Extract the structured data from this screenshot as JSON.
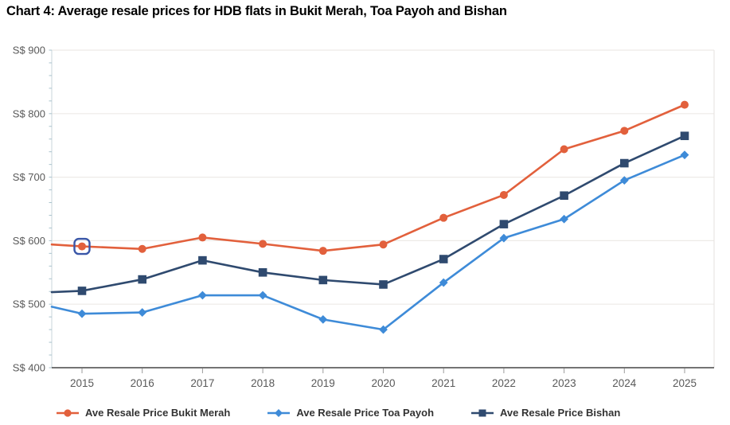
{
  "title": "Chart 4: Average resale prices for HDB flats in Bukit Merah, Toa Payoh and Bishan",
  "chart_data": {
    "type": "line",
    "x": [
      2015,
      2016,
      2017,
      2018,
      2019,
      2020,
      2021,
      2022,
      2023,
      2024,
      2025
    ],
    "series": [
      {
        "name": "Ave Resale Price Bukit Merah",
        "short_name": "bukit-merah",
        "color": "#E2603C",
        "marker": "circle",
        "edge_value": 594,
        "values": [
          591,
          587,
          605,
          595,
          584,
          594,
          636,
          672,
          744,
          773,
          814
        ]
      },
      {
        "name": "Ave Resale Price Toa Payoh",
        "short_name": "toa-payoh",
        "color": "#3E8BD8",
        "marker": "diamond",
        "edge_value": 496,
        "values": [
          485,
          487,
          514,
          514,
          476,
          460,
          534,
          604,
          634,
          695,
          735
        ]
      },
      {
        "name": "Ave Resale Price Bishan",
        "short_name": "bishan",
        "color": "#2F4A6F",
        "marker": "square",
        "edge_value": 519,
        "values": [
          521,
          539,
          569,
          550,
          538,
          531,
          571,
          626,
          671,
          722,
          765
        ]
      }
    ],
    "y_axis": {
      "min": 400,
      "max": 900,
      "major_step": 100,
      "minor_step": 20,
      "tick_prefix": "S$ ",
      "tick_labels": [
        "S$ 400",
        "S$ 500",
        "S$ 600",
        "S$ 700",
        "S$ 800",
        "S$ 900"
      ]
    },
    "x_axis": {
      "tick_labels": [
        "2015",
        "2016",
        "2017",
        "2018",
        "2019",
        "2020",
        "2021",
        "2022",
        "2023",
        "2024",
        "2025"
      ]
    },
    "highlighted_point": {
      "series": "Ave Resale Price Bukit Merah",
      "series_index": 0,
      "year": 2015,
      "value": 591,
      "box_color": "#3A57A8"
    },
    "legend_position": "bottom",
    "grid": "horizontal",
    "style_colors": {
      "grid_line": "#EDEAE7",
      "left_axis_line": "#C9D5DB",
      "right_edge_line": "#E5E2DF",
      "bottom_axis_line": "#474747",
      "minor_tick": "#A9C3CD",
      "x_tick": "#9B9B9B",
      "axis_label": "#595959",
      "legend_text": "#333333"
    }
  }
}
